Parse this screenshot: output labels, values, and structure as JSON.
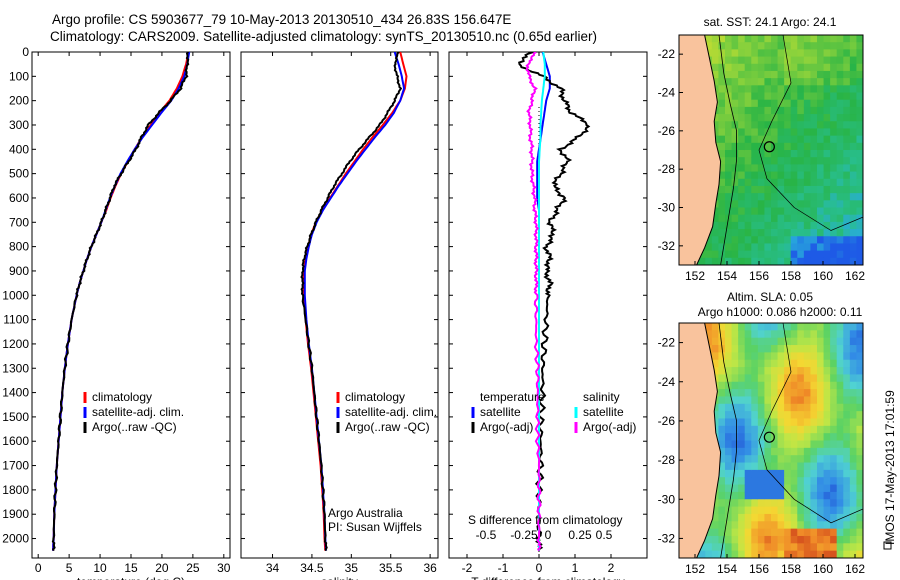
{
  "title_line1": "Argo profile: CS 5903677_79 10-May-2013 20130510_434 26.83S 156.647E",
  "title_line2": "Climatology: CARS2009. Satellite-adjusted climatology: synTS_20130510.nc (0.65d earlier)",
  "side_label": "IMOS 17-May-2013 17:01:59",
  "colors": {
    "climatology": "#ff0000",
    "satellite": "#0000ff",
    "argo": "#000000",
    "s_satellite": "#00ffff",
    "s_argo": "#ff00ff",
    "land": "#f9c39d"
  },
  "chart_data": [
    {
      "id": "temperature",
      "type": "line",
      "xlabel": "temperature (deg C)",
      "xlim": [
        -1,
        31
      ],
      "xticks": [
        "0",
        "5",
        "10",
        "15",
        "20",
        "25",
        "30"
      ],
      "xtick_values": [
        0,
        5,
        10,
        15,
        20,
        25,
        30
      ],
      "ylim": [
        0,
        2080
      ],
      "yticks": [
        "0",
        "100",
        "200",
        "300",
        "400",
        "500",
        "600",
        "700",
        "800",
        "900",
        "1000",
        "1100",
        "1200",
        "1300",
        "1400",
        "1500",
        "1600",
        "1700",
        "1800",
        "1900",
        "2000"
      ],
      "ytick_values": [
        0,
        100,
        200,
        300,
        400,
        500,
        600,
        700,
        800,
        900,
        1000,
        1100,
        1200,
        1300,
        1400,
        1500,
        1600,
        1700,
        1800,
        1900,
        2000
      ],
      "legend": [
        "climatology",
        "satellite-adj. clim.",
        "Argo(..raw -QC)"
      ],
      "depth": [
        0,
        50,
        100,
        150,
        200,
        250,
        300,
        350,
        400,
        450,
        500,
        550,
        600,
        650,
        700,
        750,
        800,
        850,
        900,
        950,
        1000,
        1100,
        1200,
        1300,
        1400,
        1500,
        1600,
        1700,
        1800,
        1900,
        2000,
        2050
      ],
      "series": [
        {
          "name": "climatology",
          "values": [
            24.3,
            23.9,
            23.3,
            22.4,
            21.2,
            19.6,
            18.2,
            16.8,
            15.6,
            14.5,
            13.4,
            12.5,
            11.7,
            11.0,
            10.2,
            9.4,
            8.6,
            7.9,
            7.3,
            6.7,
            6.2,
            5.4,
            4.8,
            4.3,
            3.9,
            3.6,
            3.3,
            3.0,
            2.8,
            2.6,
            2.5,
            2.4
          ]
        },
        {
          "name": "satellite-adj. clim.",
          "values": [
            24.4,
            24.1,
            23.6,
            22.7,
            21.5,
            19.9,
            18.4,
            16.9,
            15.6,
            14.4,
            13.3,
            12.4,
            11.6,
            10.9,
            10.2,
            9.4,
            8.6,
            7.9,
            7.3,
            6.7,
            6.2,
            5.4,
            4.8,
            4.3,
            3.9,
            3.6,
            3.3,
            3.0,
            2.8,
            2.6,
            2.5,
            2.4
          ]
        },
        {
          "name": "Argo(..raw -QC)",
          "values": [
            24.2,
            24.1,
            23.9,
            23.0,
            21.4,
            19.5,
            17.8,
            16.7,
            15.8,
            14.6,
            13.4,
            12.3,
            11.6,
            10.9,
            10.2,
            9.4,
            8.6,
            7.9,
            7.3,
            6.7,
            6.2,
            5.4,
            4.8,
            4.3,
            3.9,
            3.6,
            3.3,
            3.0,
            2.8,
            2.6,
            2.5,
            2.5
          ]
        }
      ]
    },
    {
      "id": "salinity",
      "type": "line",
      "xlabel": "salinity",
      "xlim": [
        33.6,
        36.1
      ],
      "xticks": [
        "34",
        "34.5",
        "35",
        "35.5",
        "36"
      ],
      "xtick_values": [
        34,
        34.5,
        35,
        35.5,
        36
      ],
      "ylim": [
        0,
        2080
      ],
      "legend": [
        "climatology",
        "satellite-adj. clim.",
        "Argo(..raw -QC)"
      ],
      "annotation": [
        "Argo Australia",
        "PI: Susan Wijffels"
      ],
      "depth": [
        0,
        50,
        100,
        150,
        200,
        250,
        300,
        350,
        400,
        450,
        500,
        550,
        600,
        650,
        700,
        750,
        800,
        850,
        900,
        950,
        1000,
        1100,
        1200,
        1300,
        1400,
        1500,
        1600,
        1700,
        1800,
        1900,
        2000,
        2050
      ],
      "series": [
        {
          "name": "climatology",
          "values": [
            35.62,
            35.66,
            35.7,
            35.68,
            35.62,
            35.52,
            35.4,
            35.27,
            35.15,
            35.04,
            34.93,
            34.83,
            34.73,
            34.63,
            34.55,
            34.49,
            34.45,
            34.42,
            34.4,
            34.4,
            34.4,
            34.42,
            34.45,
            34.49,
            34.52,
            34.55,
            34.58,
            34.61,
            34.63,
            34.65,
            34.66,
            34.67
          ]
        },
        {
          "name": "satellite-adj. clim.",
          "values": [
            35.55,
            35.6,
            35.64,
            35.67,
            35.62,
            35.54,
            35.43,
            35.3,
            35.18,
            35.06,
            34.95,
            34.84,
            34.74,
            34.64,
            34.56,
            34.5,
            34.46,
            34.43,
            34.41,
            34.41,
            34.41,
            34.43,
            34.46,
            34.5,
            34.53,
            34.56,
            34.59,
            34.62,
            34.64,
            34.66,
            34.67,
            34.68
          ]
        },
        {
          "name": "Argo(..raw -QC)",
          "values": [
            35.6,
            35.55,
            35.58,
            35.62,
            35.55,
            35.46,
            35.36,
            35.23,
            35.1,
            34.98,
            34.88,
            34.78,
            34.7,
            34.62,
            34.55,
            34.49,
            34.44,
            34.4,
            34.38,
            34.38,
            34.38,
            34.42,
            34.46,
            34.5,
            34.53,
            34.56,
            34.59,
            34.62,
            34.64,
            34.66,
            34.67,
            34.68
          ]
        }
      ]
    },
    {
      "id": "difference",
      "type": "line",
      "xlabel": "T difference from climatology",
      "x2label": "S difference from climatology",
      "xlim": [
        -2.5,
        3.0
      ],
      "xticks": [
        "-2",
        "-1",
        "0",
        "1",
        "2"
      ],
      "xtick_values": [
        -2,
        -1,
        0,
        1,
        2
      ],
      "x2ticks": [
        "-0.5",
        "-0.25",
        "0",
        "0.25",
        "0.5"
      ],
      "ylim": [
        0,
        2080
      ],
      "legend_headers": [
        "temperature",
        "salinity"
      ],
      "legend_t": [
        "satellite",
        "Argo(-adj)"
      ],
      "legend_s": [
        "satellite",
        "Argo(-adj)"
      ],
      "depth": [
        0,
        50,
        100,
        150,
        200,
        250,
        300,
        350,
        400,
        450,
        500,
        550,
        600,
        650,
        700,
        750,
        800,
        850,
        900,
        950,
        1000,
        1100,
        1200,
        1300,
        1400,
        1500,
        1600,
        1700,
        1800,
        1900,
        2000,
        2050
      ],
      "series": [
        {
          "name": "T satellite",
          "values": [
            0.1,
            0.2,
            0.3,
            0.3,
            0.2,
            0.15,
            0.1,
            0.05,
            0.0,
            -0.05,
            -0.05,
            -0.05,
            -0.05,
            0.0,
            0.0,
            0.0,
            0.0,
            0.0,
            0.0,
            0.0,
            0.0,
            0.0,
            0.0,
            0.0,
            0.0,
            0.0,
            0.0,
            0.0,
            0.0,
            0.0,
            0.0,
            0.0
          ]
        },
        {
          "name": "T Argo(-adj)",
          "values": [
            -0.2,
            -0.6,
            0.1,
            0.6,
            0.7,
            0.9,
            1.4,
            1.1,
            0.6,
            0.8,
            0.6,
            0.4,
            0.7,
            0.5,
            0.3,
            0.4,
            0.2,
            0.3,
            0.2,
            0.3,
            0.25,
            0.2,
            0.15,
            0.1,
            0.1,
            0.05,
            0.05,
            0.05,
            0.0,
            0.0,
            0.0,
            0.0
          ]
        },
        {
          "name": "S satellite",
          "values": [
            0.03,
            0.04,
            0.04,
            0.03,
            0.02,
            0.015,
            0.01,
            0.01,
            0.005,
            0.0,
            0.0,
            0.0,
            0.0,
            0.0,
            0.0,
            0.0,
            0.0,
            0.0,
            0.0,
            0.0,
            0.0,
            0.0,
            0.0,
            0.0,
            0.0,
            0.0,
            0.0,
            0.0,
            0.0,
            0.0,
            0.0,
            0.0
          ]
        },
        {
          "name": "S Argo(-adj)",
          "values": [
            -0.02,
            -0.08,
            -0.07,
            -0.03,
            -0.05,
            -0.07,
            -0.06,
            -0.06,
            -0.05,
            -0.05,
            -0.05,
            -0.04,
            -0.03,
            -0.03,
            -0.02,
            -0.02,
            -0.02,
            -0.02,
            -0.02,
            -0.02,
            -0.02,
            -0.02,
            -0.02,
            -0.01,
            -0.01,
            -0.01,
            -0.01,
            0.0,
            0.0,
            0.0,
            0.0,
            0.0
          ]
        }
      ]
    },
    {
      "id": "sst_map",
      "type": "heatmap",
      "title": "sat. SST: 24.1 Argo: 24.1",
      "xlim": [
        151,
        162.5
      ],
      "ylim": [
        -33,
        -21
      ],
      "xticks": [
        "152",
        "154",
        "156",
        "158",
        "160",
        "162"
      ],
      "xtick_values": [
        152,
        154,
        156,
        158,
        160,
        162
      ],
      "yticks": [
        "-22",
        "-24",
        "-26",
        "-28",
        "-30",
        "-32"
      ],
      "ytick_values": [
        -22,
        -24,
        -26,
        -28,
        -30,
        -32
      ],
      "marker": {
        "lon": 156.647,
        "lat": -26.83
      }
    },
    {
      "id": "sla_map",
      "type": "heatmap",
      "title": [
        "Altim. SLA: 0.05",
        "Argo h1000: 0.086 h2000: 0.11"
      ],
      "xlim": [
        151,
        162.5
      ],
      "ylim": [
        -33,
        -21
      ],
      "xticks": [
        "152",
        "154",
        "156",
        "158",
        "160",
        "162"
      ],
      "xtick_values": [
        152,
        154,
        156,
        158,
        160,
        162
      ],
      "yticks": [
        "-22",
        "-24",
        "-26",
        "-28",
        "-30",
        "-32"
      ],
      "ytick_values": [
        -22,
        -24,
        -26,
        -28,
        -30,
        -32
      ],
      "marker": {
        "lon": 156.647,
        "lat": -26.83
      }
    }
  ]
}
